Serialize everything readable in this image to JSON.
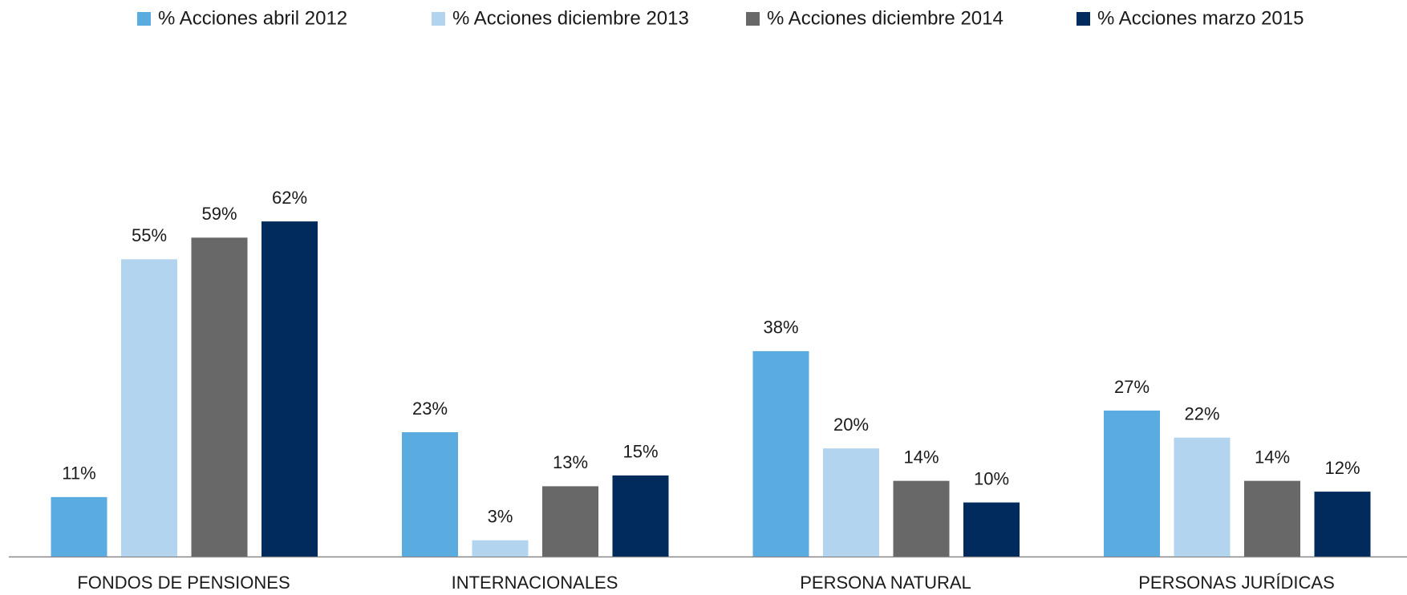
{
  "chart_data": {
    "type": "bar",
    "categories": [
      "FONDOS DE PENSIONES",
      "INTERNACIONALES",
      "PERSONA NATURAL",
      "PERSONAS JURÍDICAS"
    ],
    "series": [
      {
        "name": "% Acciones abril 2012",
        "color": "#5aace0",
        "values": [
          11,
          23,
          38,
          27
        ],
        "value_labels": [
          "11%",
          "23%",
          "38%",
          "27%"
        ]
      },
      {
        "name": "% Acciones diciembre 2013",
        "color": "#b3d4ee",
        "values": [
          55,
          3,
          20,
          22
        ],
        "value_labels": [
          "55%",
          "3%",
          "20%",
          "22%"
        ]
      },
      {
        "name": "% Acciones diciembre 2014",
        "color": "#686868",
        "values": [
          59,
          13,
          14,
          14
        ],
        "value_labels": [
          "59%",
          "13%",
          "14%",
          "14%"
        ]
      },
      {
        "name": "% Acciones marzo 2015",
        "color": "#002b5c",
        "values": [
          62,
          15,
          10,
          12
        ],
        "value_labels": [
          "62%",
          "15%",
          "10%",
          "12%"
        ]
      }
    ],
    "legend": "top"
  }
}
